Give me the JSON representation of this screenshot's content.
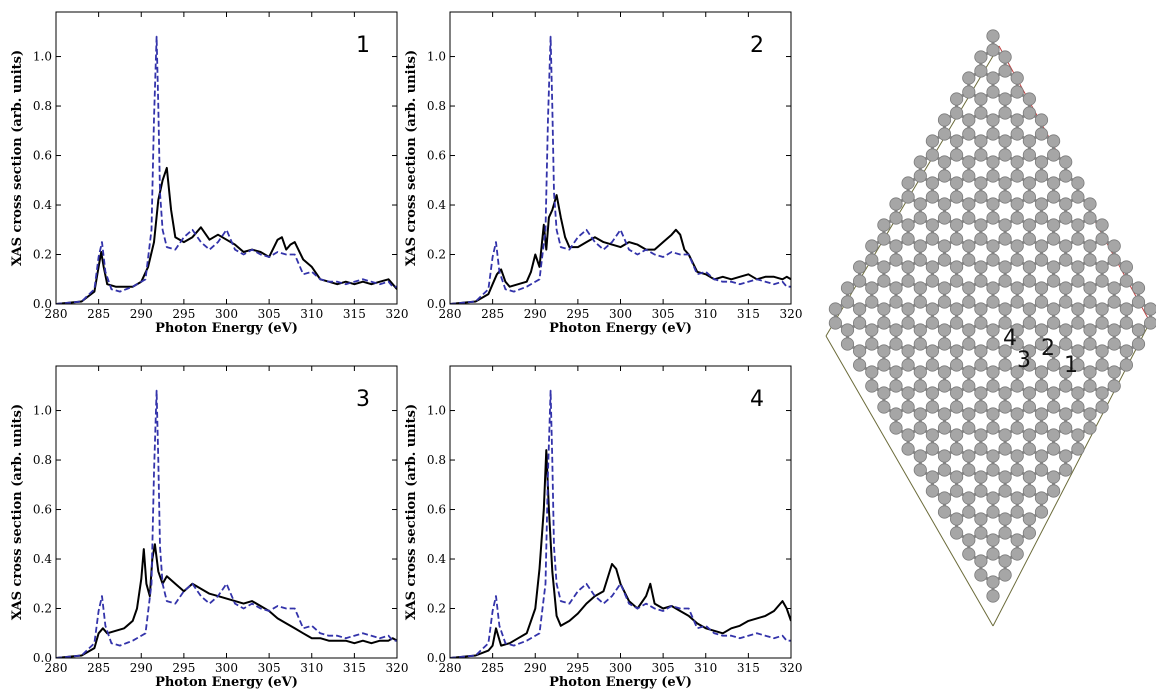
{
  "chart_data": [
    {
      "type": "line",
      "panel_label": "1",
      "xlabel": "Photon Energy (eV)",
      "ylabel": "XAS cross section (arb. units)",
      "xlim": [
        280,
        320
      ],
      "ylim": [
        0,
        1.18
      ],
      "xticks": [
        280,
        285,
        290,
        295,
        300,
        305,
        310,
        315,
        320
      ],
      "yticks": [
        0.0,
        0.2,
        0.4,
        0.6,
        0.8,
        1.0
      ],
      "series": [
        {
          "style": "solid",
          "color": "#000000",
          "x": [
            280,
            283,
            284.5,
            285,
            285.3,
            285.6,
            286,
            287,
            288,
            289,
            290,
            290.8,
            291.5,
            292,
            292.5,
            293,
            293.5,
            294,
            295,
            296,
            297,
            298,
            299,
            300,
            301,
            302,
            303,
            304,
            305,
            306,
            306.5,
            307,
            307.5,
            308,
            309,
            310,
            311,
            312,
            313,
            314,
            315,
            316,
            317,
            318,
            319,
            319.5,
            320
          ],
          "y": [
            0.0,
            0.01,
            0.05,
            0.15,
            0.21,
            0.15,
            0.08,
            0.07,
            0.07,
            0.07,
            0.09,
            0.15,
            0.25,
            0.42,
            0.5,
            0.55,
            0.38,
            0.27,
            0.25,
            0.27,
            0.31,
            0.26,
            0.28,
            0.26,
            0.24,
            0.21,
            0.22,
            0.21,
            0.19,
            0.26,
            0.27,
            0.22,
            0.24,
            0.25,
            0.18,
            0.15,
            0.1,
            0.09,
            0.08,
            0.09,
            0.08,
            0.09,
            0.08,
            0.09,
            0.1,
            0.08,
            0.06
          ]
        },
        {
          "style": "dashed",
          "color": "#3333aa",
          "x": [
            280,
            283,
            284.5,
            285,
            285.4,
            285.8,
            286.5,
            287.5,
            289,
            290.5,
            291.2,
            291.5,
            291.8,
            292,
            292.2,
            292.5,
            293,
            294,
            295,
            296,
            297,
            298,
            299,
            300,
            301,
            302,
            303,
            304,
            305,
            306,
            307,
            308,
            309,
            310,
            311,
            312,
            313,
            314,
            315,
            316,
            317,
            318,
            319,
            319.5,
            320
          ],
          "y": [
            0.0,
            0.01,
            0.06,
            0.19,
            0.25,
            0.13,
            0.06,
            0.05,
            0.07,
            0.1,
            0.3,
            0.75,
            1.08,
            0.8,
            0.45,
            0.3,
            0.23,
            0.22,
            0.27,
            0.3,
            0.25,
            0.22,
            0.25,
            0.3,
            0.22,
            0.2,
            0.22,
            0.2,
            0.19,
            0.21,
            0.2,
            0.2,
            0.12,
            0.13,
            0.1,
            0.09,
            0.09,
            0.08,
            0.09,
            0.1,
            0.09,
            0.08,
            0.09,
            0.07,
            0.07
          ]
        }
      ]
    },
    {
      "type": "line",
      "panel_label": "2",
      "xlabel": "Photon Energy (eV)",
      "ylabel": "XAS cross section (arb. units)",
      "xlim": [
        280,
        320
      ],
      "ylim": [
        0,
        1.18
      ],
      "xticks": [
        280,
        285,
        290,
        295,
        300,
        305,
        310,
        315,
        320
      ],
      "yticks": [
        0.0,
        0.2,
        0.4,
        0.6,
        0.8,
        1.0
      ],
      "series": [
        {
          "style": "solid",
          "color": "#000000",
          "x": [
            280,
            283,
            284.5,
            285,
            285.5,
            286,
            286.5,
            287,
            288,
            289,
            289.5,
            290,
            290.5,
            291,
            291.3,
            291.6,
            292,
            292.5,
            293,
            293.5,
            294,
            295,
            296,
            297,
            298,
            299,
            300,
            301,
            302,
            303,
            304,
            305,
            306,
            306.5,
            307,
            307.5,
            308,
            309,
            310,
            311,
            312,
            313,
            314,
            315,
            316,
            317,
            318,
            319,
            319.5,
            320
          ],
          "y": [
            0.0,
            0.01,
            0.04,
            0.08,
            0.12,
            0.14,
            0.09,
            0.07,
            0.08,
            0.09,
            0.13,
            0.2,
            0.15,
            0.32,
            0.22,
            0.35,
            0.38,
            0.44,
            0.35,
            0.27,
            0.23,
            0.23,
            0.25,
            0.27,
            0.25,
            0.24,
            0.23,
            0.25,
            0.24,
            0.22,
            0.22,
            0.25,
            0.28,
            0.3,
            0.28,
            0.22,
            0.2,
            0.13,
            0.12,
            0.1,
            0.11,
            0.1,
            0.11,
            0.12,
            0.1,
            0.11,
            0.11,
            0.1,
            0.11,
            0.1
          ]
        },
        {
          "style": "dashed",
          "color": "#3333aa",
          "x": [
            280,
            283,
            284.5,
            285,
            285.4,
            285.8,
            286.5,
            287.5,
            289,
            290.5,
            291.2,
            291.5,
            291.8,
            292,
            292.2,
            292.5,
            293,
            294,
            295,
            296,
            297,
            298,
            299,
            300,
            301,
            302,
            303,
            304,
            305,
            306,
            307,
            308,
            309,
            310,
            311,
            312,
            313,
            314,
            315,
            316,
            317,
            318,
            319,
            319.5,
            320
          ],
          "y": [
            0.0,
            0.01,
            0.06,
            0.19,
            0.25,
            0.13,
            0.06,
            0.05,
            0.07,
            0.1,
            0.3,
            0.75,
            1.08,
            0.8,
            0.45,
            0.3,
            0.23,
            0.22,
            0.27,
            0.3,
            0.25,
            0.22,
            0.25,
            0.3,
            0.22,
            0.2,
            0.22,
            0.2,
            0.19,
            0.21,
            0.2,
            0.2,
            0.12,
            0.13,
            0.1,
            0.09,
            0.09,
            0.08,
            0.09,
            0.1,
            0.09,
            0.08,
            0.09,
            0.07,
            0.07
          ]
        }
      ]
    },
    {
      "type": "line",
      "panel_label": "3",
      "xlabel": "Photon Energy (eV)",
      "ylabel": "XAS cross section (arb. units)",
      "xlim": [
        280,
        320
      ],
      "ylim": [
        0,
        1.18
      ],
      "xticks": [
        280,
        285,
        290,
        295,
        300,
        305,
        310,
        315,
        320
      ],
      "yticks": [
        0.0,
        0.2,
        0.4,
        0.6,
        0.8,
        1.0
      ],
      "series": [
        {
          "style": "solid",
          "color": "#000000",
          "x": [
            280,
            283,
            284.5,
            285,
            285.5,
            286,
            287,
            288,
            289,
            289.5,
            290,
            290.3,
            290.6,
            291,
            291.3,
            291.6,
            292,
            292.5,
            293,
            294,
            295,
            296,
            297,
            298,
            299,
            300,
            301,
            302,
            303,
            304,
            305,
            306,
            307,
            308,
            309,
            310,
            311,
            312,
            313,
            314,
            315,
            316,
            317,
            318,
            319,
            319.5,
            320
          ],
          "y": [
            0.0,
            0.01,
            0.04,
            0.1,
            0.12,
            0.1,
            0.11,
            0.12,
            0.15,
            0.2,
            0.32,
            0.44,
            0.3,
            0.25,
            0.4,
            0.46,
            0.35,
            0.3,
            0.33,
            0.3,
            0.27,
            0.3,
            0.28,
            0.26,
            0.25,
            0.24,
            0.23,
            0.22,
            0.23,
            0.21,
            0.19,
            0.16,
            0.14,
            0.12,
            0.1,
            0.08,
            0.08,
            0.07,
            0.07,
            0.07,
            0.06,
            0.07,
            0.06,
            0.07,
            0.07,
            0.08,
            0.07
          ]
        },
        {
          "style": "dashed",
          "color": "#3333aa",
          "x": [
            280,
            283,
            284.5,
            285,
            285.4,
            285.8,
            286.5,
            287.5,
            289,
            290.5,
            291.2,
            291.5,
            291.8,
            292,
            292.2,
            292.5,
            293,
            294,
            295,
            296,
            297,
            298,
            299,
            300,
            301,
            302,
            303,
            304,
            305,
            306,
            307,
            308,
            309,
            310,
            311,
            312,
            313,
            314,
            315,
            316,
            317,
            318,
            319,
            319.5,
            320
          ],
          "y": [
            0.0,
            0.01,
            0.06,
            0.19,
            0.25,
            0.13,
            0.06,
            0.05,
            0.07,
            0.1,
            0.3,
            0.75,
            1.08,
            0.8,
            0.45,
            0.3,
            0.23,
            0.22,
            0.27,
            0.3,
            0.25,
            0.22,
            0.25,
            0.3,
            0.22,
            0.2,
            0.22,
            0.2,
            0.19,
            0.21,
            0.2,
            0.2,
            0.12,
            0.13,
            0.1,
            0.09,
            0.09,
            0.08,
            0.09,
            0.1,
            0.09,
            0.08,
            0.09,
            0.07,
            0.07
          ]
        }
      ]
    },
    {
      "type": "line",
      "panel_label": "4",
      "xlabel": "Photon Energy (eV)",
      "ylabel": "XAS cross section (arb. units)",
      "xlim": [
        280,
        320
      ],
      "ylim": [
        0,
        1.18
      ],
      "xticks": [
        280,
        285,
        290,
        295,
        300,
        305,
        310,
        315,
        320
      ],
      "yticks": [
        0.0,
        0.2,
        0.4,
        0.6,
        0.8,
        1.0
      ],
      "series": [
        {
          "style": "solid",
          "color": "#000000",
          "x": [
            280,
            283,
            284.5,
            285,
            285.4,
            286,
            287,
            288,
            289,
            290,
            290.5,
            291,
            291.3,
            291.6,
            292,
            292.5,
            293,
            294,
            295,
            296,
            297,
            298,
            299,
            299.5,
            300,
            301,
            302,
            303,
            303.5,
            304,
            305,
            306,
            307,
            308,
            309,
            310,
            311,
            312,
            313,
            314,
            315,
            316,
            317,
            318,
            319,
            319.5,
            320
          ],
          "y": [
            0.0,
            0.01,
            0.03,
            0.05,
            0.12,
            0.05,
            0.06,
            0.08,
            0.1,
            0.2,
            0.36,
            0.6,
            0.84,
            0.6,
            0.35,
            0.17,
            0.13,
            0.15,
            0.18,
            0.22,
            0.25,
            0.27,
            0.38,
            0.36,
            0.3,
            0.23,
            0.2,
            0.25,
            0.3,
            0.22,
            0.2,
            0.21,
            0.19,
            0.17,
            0.14,
            0.12,
            0.11,
            0.1,
            0.12,
            0.13,
            0.15,
            0.16,
            0.17,
            0.19,
            0.23,
            0.2,
            0.15
          ]
        },
        {
          "style": "dashed",
          "color": "#3333aa",
          "x": [
            280,
            283,
            284.5,
            285,
            285.4,
            285.8,
            286.5,
            287.5,
            289,
            290.5,
            291.2,
            291.5,
            291.8,
            292,
            292.2,
            292.5,
            293,
            294,
            295,
            296,
            297,
            298,
            299,
            300,
            301,
            302,
            303,
            304,
            305,
            306,
            307,
            308,
            309,
            310,
            311,
            312,
            313,
            314,
            315,
            316,
            317,
            318,
            319,
            319.5,
            320
          ],
          "y": [
            0.0,
            0.01,
            0.06,
            0.19,
            0.25,
            0.13,
            0.06,
            0.05,
            0.07,
            0.1,
            0.3,
            0.75,
            1.08,
            0.8,
            0.45,
            0.3,
            0.23,
            0.22,
            0.27,
            0.3,
            0.25,
            0.22,
            0.25,
            0.3,
            0.22,
            0.2,
            0.22,
            0.2,
            0.19,
            0.21,
            0.2,
            0.2,
            0.12,
            0.13,
            0.1,
            0.09,
            0.09,
            0.08,
            0.09,
            0.1,
            0.09,
            0.08,
            0.09,
            0.07,
            0.07
          ]
        }
      ]
    }
  ],
  "structure": {
    "atom_color": "#a6a6a6",
    "bond_color": "#8c8c8c",
    "cell_color_left": "#6b6b3a",
    "cell_color_right": "#c04040",
    "site_labels": [
      "4",
      "3",
      "2",
      "1"
    ]
  }
}
